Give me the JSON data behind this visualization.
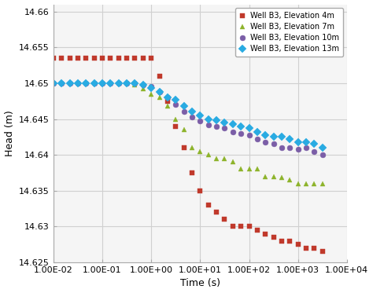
{
  "title": "",
  "xlabel": "Time (s)",
  "ylabel": "Head (m)",
  "xlim_log": [
    -2,
    4
  ],
  "ylim": [
    14.625,
    14.661
  ],
  "yticks": [
    14.625,
    14.63,
    14.635,
    14.64,
    14.645,
    14.65,
    14.655,
    14.66
  ],
  "ytick_labels": [
    "14.625",
    "14.63",
    "14.635",
    "14.64",
    "14.645",
    "14.65",
    "14.655",
    "14.66"
  ],
  "xtick_vals": [
    0.01,
    0.1,
    1.0,
    10.0,
    100.0,
    1000.0,
    10000.0
  ],
  "xtick_labels": [
    "1.00E-02",
    "1.00E-01",
    "1.00E+00",
    "1.00E+01",
    "1.00E+02",
    "1.00E+03",
    "1.00E+04"
  ],
  "series": [
    {
      "label": "Well B3, Elevation 4m",
      "color": "#c0392b",
      "marker": "s",
      "time": [
        0.01,
        0.0147,
        0.0215,
        0.0316,
        0.0464,
        0.0681,
        0.1,
        0.1468,
        0.2154,
        0.3162,
        0.4642,
        0.6813,
        1.0,
        1.4678,
        2.1544,
        3.1623,
        4.6416,
        6.8129,
        10.0,
        14.678,
        21.544,
        31.623,
        46.416,
        68.129,
        100.0,
        146.78,
        215.44,
        316.23,
        464.16,
        681.29,
        1000.0,
        1467.8,
        2154.4,
        3162.3
      ],
      "head": [
        14.6535,
        14.6535,
        14.6535,
        14.6535,
        14.6535,
        14.6535,
        14.6535,
        14.6535,
        14.6535,
        14.6535,
        14.6535,
        14.6535,
        14.6535,
        14.651,
        14.6475,
        14.644,
        14.641,
        14.6375,
        14.635,
        14.633,
        14.632,
        14.631,
        14.63,
        14.63,
        14.63,
        14.6295,
        14.629,
        14.6285,
        14.628,
        14.628,
        14.6275,
        14.627,
        14.627,
        14.6265
      ]
    },
    {
      "label": "Well B3, Elevation 7m",
      "color": "#8db32a",
      "marker": "^",
      "time": [
        0.4642,
        0.6813,
        1.0,
        1.4678,
        2.1544,
        3.1623,
        4.6416,
        6.8129,
        10.0,
        14.678,
        21.544,
        31.623,
        46.416,
        68.129,
        100.0,
        146.78,
        215.44,
        316.23,
        464.16,
        681.29,
        1000.0,
        1467.8,
        2154.4,
        3162.3
      ],
      "head": [
        14.6498,
        14.6492,
        14.6485,
        14.648,
        14.6468,
        14.645,
        14.6435,
        14.641,
        14.6405,
        14.64,
        14.6395,
        14.6395,
        14.639,
        14.638,
        14.638,
        14.638,
        14.637,
        14.637,
        14.6368,
        14.6365,
        14.636,
        14.636,
        14.636,
        14.636
      ]
    },
    {
      "label": "Well B3, Elevation 10m",
      "color": "#7b5ea7",
      "marker": "o",
      "time": [
        0.01,
        0.0147,
        0.0215,
        0.0316,
        0.0464,
        0.0681,
        0.1,
        0.1468,
        0.2154,
        0.3162,
        0.4642,
        0.6813,
        1.0,
        1.4678,
        2.1544,
        3.1623,
        4.6416,
        6.8129,
        10.0,
        14.678,
        21.544,
        31.623,
        46.416,
        68.129,
        100.0,
        146.78,
        215.44,
        316.23,
        464.16,
        681.29,
        1000.0,
        1467.8,
        2154.4,
        3162.3
      ],
      "head": [
        14.65,
        14.65,
        14.65,
        14.65,
        14.65,
        14.65,
        14.65,
        14.65,
        14.65,
        14.65,
        14.65,
        14.6498,
        14.6495,
        14.6488,
        14.648,
        14.647,
        14.646,
        14.6453,
        14.6447,
        14.6442,
        14.644,
        14.6437,
        14.6432,
        14.643,
        14.6428,
        14.6422,
        14.6418,
        14.6415,
        14.641,
        14.641,
        14.6408,
        14.641,
        14.6405,
        14.64
      ]
    },
    {
      "label": "Well B3, Elevation 13m",
      "color": "#29abe2",
      "marker": "D",
      "time": [
        0.01,
        0.0147,
        0.0215,
        0.0316,
        0.0464,
        0.0681,
        0.1,
        0.1468,
        0.2154,
        0.3162,
        0.4642,
        0.6813,
        1.0,
        1.4678,
        2.1544,
        3.1623,
        4.6416,
        6.8129,
        10.0,
        14.678,
        21.544,
        31.623,
        46.416,
        68.129,
        100.0,
        146.78,
        215.44,
        316.23,
        464.16,
        681.29,
        1000.0,
        1467.8,
        2154.4,
        3162.3
      ],
      "head": [
        14.65,
        14.65,
        14.65,
        14.65,
        14.65,
        14.65,
        14.65,
        14.65,
        14.65,
        14.65,
        14.65,
        14.6498,
        14.6493,
        14.6488,
        14.648,
        14.6477,
        14.6468,
        14.646,
        14.6455,
        14.645,
        14.6448,
        14.6445,
        14.6443,
        14.644,
        14.6437,
        14.6432,
        14.6428,
        14.6425,
        14.6425,
        14.6422,
        14.6418,
        14.6418,
        14.6415,
        14.641
      ]
    }
  ],
  "legend_loc": "upper right",
  "grid_color": "#d0d0d0",
  "plot_bg_color": "#f5f5f5",
  "fig_bg_color": "#ffffff",
  "marker_size": 5,
  "marker_edge_width": 0.3,
  "tick_labelsize": 8,
  "axis_labelsize": 9,
  "legend_fontsize": 7
}
